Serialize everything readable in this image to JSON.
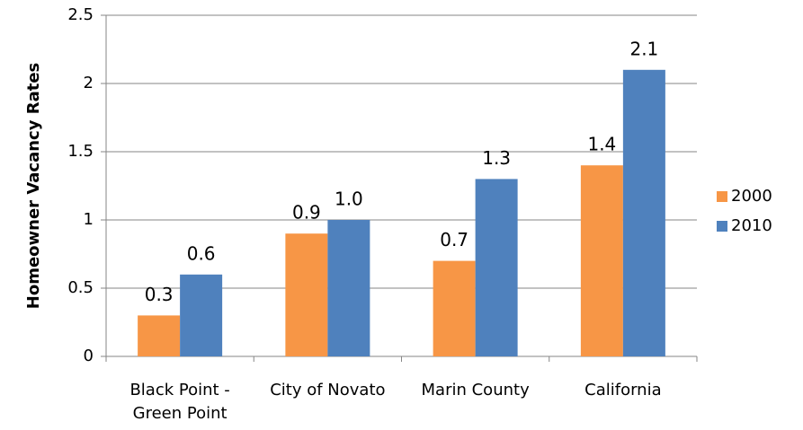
{
  "chart_data": {
    "type": "bar",
    "y_label": "Homeowner Vacancy Rates",
    "categories": [
      "Black Point - Green Point",
      "City of Novato",
      "Marin County",
      "California"
    ],
    "series": [
      {
        "name": "2000",
        "color": "#f79646",
        "values": [
          0.3,
          0.9,
          0.7,
          1.4
        ],
        "value_labels": [
          "0.3",
          "0.9",
          "0.7",
          "1.4"
        ]
      },
      {
        "name": "2010",
        "color": "#4f81bd",
        "values": [
          0.6,
          1.0,
          1.3,
          2.1
        ],
        "value_labels": [
          "0.6",
          "1.0",
          "1.3",
          "2.1"
        ]
      }
    ],
    "ylim": [
      0,
      2.5
    ],
    "yticks": [
      0,
      0.5,
      1,
      1.5,
      2,
      2.5
    ],
    "grid": true,
    "legend": "right"
  }
}
